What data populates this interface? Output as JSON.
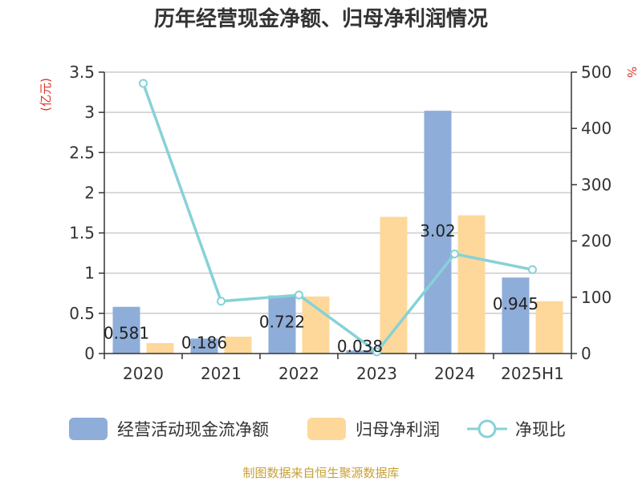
{
  "chart_data": {
    "type": "bar",
    "title": "历年经营现金净额、归母净利润情况",
    "categories": [
      "2020",
      "2021",
      "2022",
      "2023",
      "2024",
      "2025H1"
    ],
    "left_axis": {
      "unit": "(亿元)",
      "ylim": [
        0,
        3.5
      ],
      "ticks": [
        "0",
        "0.5",
        "1",
        "1.5",
        "2",
        "2.5",
        "3",
        "3.5"
      ]
    },
    "right_axis": {
      "unit": "%",
      "ylim": [
        0,
        500
      ],
      "ticks": [
        "0",
        "100",
        "200",
        "300",
        "400",
        "500"
      ]
    },
    "series": [
      {
        "name": "经营活动现金流净额",
        "type": "bar",
        "axis": "left",
        "color": "#8eadd9",
        "values": [
          0.581,
          0.186,
          0.722,
          0.038,
          3.02,
          0.945
        ],
        "labels": [
          "0.581",
          "0.186",
          "0.722",
          "0.038",
          "3.02",
          "0.945"
        ]
      },
      {
        "name": "归母净利润",
        "type": "bar",
        "axis": "left",
        "color": "#fdd89a",
        "values": [
          0.13,
          0.21,
          0.71,
          1.7,
          1.72,
          0.65
        ]
      },
      {
        "name": "净现比",
        "type": "line",
        "axis": "right",
        "color": "#86d2d7",
        "values": [
          480,
          93,
          104,
          3,
          177,
          149
        ]
      }
    ],
    "grid": true,
    "legend": "bottom"
  },
  "source": "制图数据来自恒生聚源数据库"
}
